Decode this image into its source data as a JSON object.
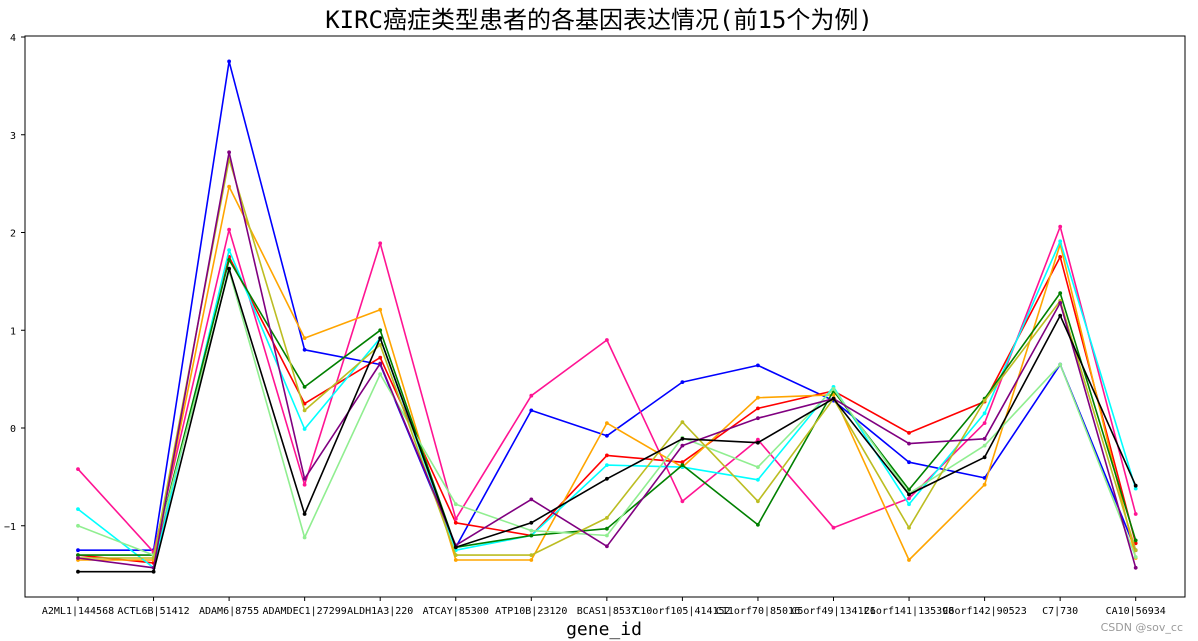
{
  "watermark": "CSDN @sov_cc",
  "chart_data": {
    "type": "line",
    "title": "KIRC癌症类型患者的各基因表达情况(前15个为例)",
    "xlabel": "gene_id",
    "ylabel": "",
    "ylim": [
      -1.7,
      4.0
    ],
    "yticks": [
      4,
      3,
      2,
      1,
      0,
      -1
    ],
    "ytick_labels": [
      "4",
      "3",
      "2",
      "1",
      "0",
      "−1"
    ],
    "grid": false,
    "categories": [
      "A2ML1|144568",
      "ACTL6B|51412",
      "ADAM6|8755",
      "ADAMDEC1|27299",
      "ALDH1A3|220",
      "ATCAY|85300",
      "ATP10B|23120",
      "BCAS1|8537",
      "C10orf105|414152",
      "C11orf70|85016",
      "C5orf49|134121",
      "C6orf141|135398",
      "C6orf142|90523",
      "C7|730",
      "CA10|56934"
    ],
    "series": [
      {
        "color": "#0000ff",
        "values": [
          -1.25,
          -1.25,
          3.75,
          0.8,
          0.65,
          -1.22,
          0.18,
          -0.08,
          0.47,
          0.64,
          0.28,
          -0.35,
          -0.51,
          0.65,
          -1.25
        ]
      },
      {
        "color": "#ff0000",
        "values": [
          -1.3,
          -1.38,
          1.75,
          0.25,
          0.72,
          -0.97,
          -1.1,
          -0.28,
          -0.35,
          0.2,
          0.38,
          -0.05,
          0.27,
          1.75,
          -1.18
        ]
      },
      {
        "color": "#ff1493",
        "values": [
          -0.42,
          -1.27,
          2.03,
          -0.58,
          1.89,
          -0.93,
          0.33,
          0.9,
          -0.75,
          -0.12,
          -1.02,
          -0.72,
          0.05,
          2.06,
          -0.88
        ]
      },
      {
        "color": "#ffa500",
        "values": [
          -1.35,
          -1.35,
          2.47,
          0.92,
          1.21,
          -1.35,
          -1.35,
          0.05,
          -0.4,
          0.31,
          0.34,
          -1.35,
          -0.58,
          1.88,
          -1.33
        ]
      },
      {
        "color": "#00ffff",
        "values": [
          -0.83,
          -1.43,
          1.82,
          -0.01,
          0.92,
          -1.25,
          -1.1,
          -0.38,
          -0.4,
          -0.53,
          0.42,
          -0.78,
          0.15,
          1.91,
          -0.62
        ]
      },
      {
        "color": "#008000",
        "values": [
          -1.3,
          -1.3,
          1.72,
          0.42,
          1.0,
          -1.22,
          -1.1,
          -1.03,
          -0.38,
          -0.99,
          0.38,
          -0.63,
          0.3,
          1.38,
          -1.15
        ]
      },
      {
        "color": "#90ee90",
        "values": [
          -1.0,
          -1.3,
          1.61,
          -1.12,
          0.55,
          -0.78,
          -1.05,
          -1.1,
          -0.1,
          -0.4,
          0.4,
          -0.67,
          -0.18,
          0.65,
          -1.32
        ]
      },
      {
        "color": "#bcbd22",
        "values": [
          -1.33,
          -1.33,
          2.75,
          0.18,
          0.85,
          -1.3,
          -1.3,
          -0.92,
          0.06,
          -0.75,
          0.3,
          -1.02,
          0.28,
          1.3,
          -1.25
        ]
      },
      {
        "color": "#800080",
        "values": [
          -1.33,
          -1.43,
          2.82,
          -0.52,
          0.66,
          -1.2,
          -0.73,
          -1.21,
          -0.18,
          0.1,
          0.3,
          -0.16,
          -0.11,
          1.28,
          -1.43
        ]
      },
      {
        "color": "#000000",
        "values": [
          -1.47,
          -1.47,
          1.63,
          -0.88,
          0.92,
          -1.22,
          -0.97,
          -0.52,
          -0.11,
          -0.15,
          0.3,
          -0.68,
          -0.3,
          1.15,
          -0.59
        ]
      }
    ]
  }
}
